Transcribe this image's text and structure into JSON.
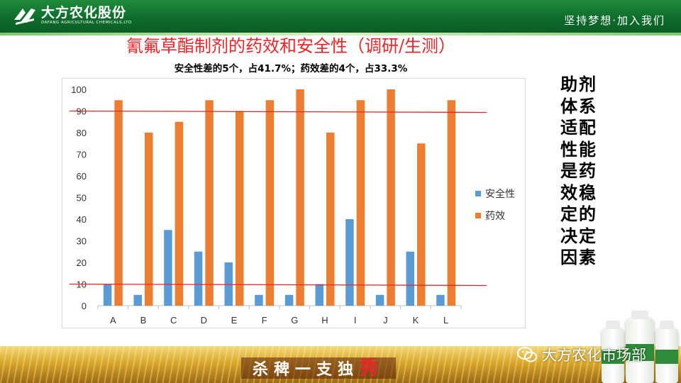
{
  "header": {
    "company_cn": "大方农化股份",
    "company_en": "DAFANG AGRICULTURAL CHEMICALS,LTD",
    "slogan": "坚持梦想·加入我们"
  },
  "title": "氰氟草酯制剂的药效和安全性（调研/生测）",
  "subtitle": "安全性差的5个，占41.7%；药效差的4个，占33.3%",
  "side_text": "助剂体系适配性能是药效稳定的决定因素",
  "footer": {
    "slogan_main": "杀稗一支独",
    "slogan_accent": "秀",
    "watermark": "大方农化市场部"
  },
  "colors": {
    "safety": "#5b9bd5",
    "efficacy": "#ed7d31",
    "reference_line": "#e8262a",
    "title": "#e8262a"
  },
  "chart_data": {
    "type": "bar",
    "categories": [
      "A",
      "B",
      "C",
      "D",
      "E",
      "F",
      "G",
      "H",
      "I",
      "J",
      "K",
      "L"
    ],
    "series": [
      {
        "name": "安全性",
        "values": [
          10,
          5,
          35,
          25,
          20,
          5,
          5,
          10,
          40,
          5,
          25,
          5
        ]
      },
      {
        "name": "药效",
        "values": [
          95,
          80,
          85,
          95,
          90,
          95,
          100,
          80,
          95,
          100,
          75,
          95
        ]
      }
    ],
    "ylim": [
      0,
      100
    ],
    "yticks": [
      0,
      10,
      20,
      30,
      40,
      50,
      60,
      70,
      80,
      90,
      100
    ],
    "reference_lines": [
      90,
      10
    ],
    "grid": false,
    "legend": "right",
    "title": "",
    "xlabel": "",
    "ylabel": ""
  }
}
